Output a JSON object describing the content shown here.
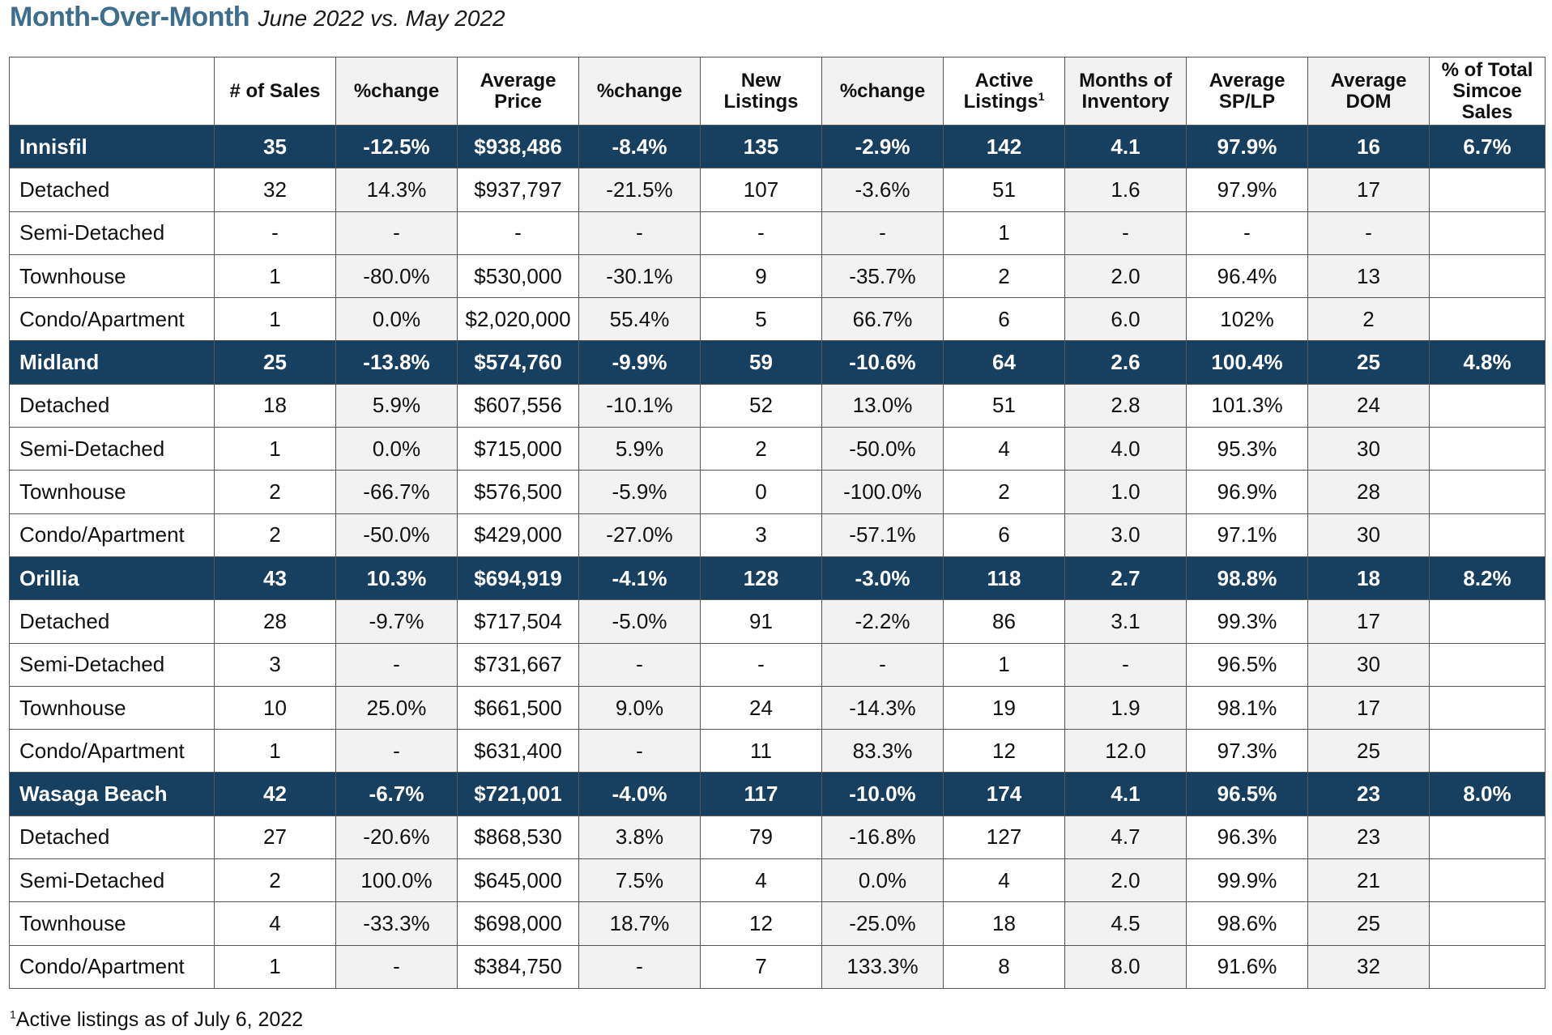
{
  "title": {
    "main": "Month-Over-Month",
    "sub": "June 2022 vs. May 2022"
  },
  "headers": [
    "",
    "# of Sales",
    "%change",
    "Average Price",
    "%change",
    "New Listings",
    "%change",
    "Active Listings",
    "Months of Inventory",
    "Average SP/LP",
    "Average DOM",
    "% of Total Simcoe Sales"
  ],
  "header_footnote_mark": "1",
  "regions": [
    {
      "summary": [
        "Innisfil",
        "35",
        "-12.5%",
        "$938,486",
        "-8.4%",
        "135",
        "-2.9%",
        "142",
        "4.1",
        "97.9%",
        "16",
        "6.7%"
      ],
      "rows": [
        [
          "Detached",
          "32",
          "14.3%",
          "$937,797",
          "-21.5%",
          "107",
          "-3.6%",
          "51",
          "1.6",
          "97.9%",
          "17",
          ""
        ],
        [
          "Semi-Detached",
          "-",
          "-",
          "-",
          "-",
          "-",
          "-",
          "1",
          "-",
          "-",
          "-",
          ""
        ],
        [
          "Townhouse",
          "1",
          "-80.0%",
          "$530,000",
          "-30.1%",
          "9",
          "-35.7%",
          "2",
          "2.0",
          "96.4%",
          "13",
          ""
        ],
        [
          "Condo/Apartment",
          "1",
          "0.0%",
          "$2,020,000",
          "55.4%",
          "5",
          "66.7%",
          "6",
          "6.0",
          "102%",
          "2",
          ""
        ]
      ]
    },
    {
      "summary": [
        "Midland",
        "25",
        "-13.8%",
        "$574,760",
        "-9.9%",
        "59",
        "-10.6%",
        "64",
        "2.6",
        "100.4%",
        "25",
        "4.8%"
      ],
      "rows": [
        [
          "Detached",
          "18",
          "5.9%",
          "$607,556",
          "-10.1%",
          "52",
          "13.0%",
          "51",
          "2.8",
          "101.3%",
          "24",
          ""
        ],
        [
          "Semi-Detached",
          "1",
          "0.0%",
          "$715,000",
          "5.9%",
          "2",
          "-50.0%",
          "4",
          "4.0",
          "95.3%",
          "30",
          ""
        ],
        [
          "Townhouse",
          "2",
          "-66.7%",
          "$576,500",
          "-5.9%",
          "0",
          "-100.0%",
          "2",
          "1.0",
          "96.9%",
          "28",
          ""
        ],
        [
          "Condo/Apartment",
          "2",
          "-50.0%",
          "$429,000",
          "-27.0%",
          "3",
          "-57.1%",
          "6",
          "3.0",
          "97.1%",
          "30",
          ""
        ]
      ]
    },
    {
      "summary": [
        "Orillia",
        "43",
        "10.3%",
        "$694,919",
        "-4.1%",
        "128",
        "-3.0%",
        "118",
        "2.7",
        "98.8%",
        "18",
        "8.2%"
      ],
      "rows": [
        [
          "Detached",
          "28",
          "-9.7%",
          "$717,504",
          "-5.0%",
          "91",
          "-2.2%",
          "86",
          "3.1",
          "99.3%",
          "17",
          ""
        ],
        [
          "Semi-Detached",
          "3",
          "-",
          "$731,667",
          "-",
          "-",
          "-",
          "1",
          "-",
          "96.5%",
          "30",
          ""
        ],
        [
          "Townhouse",
          "10",
          "25.0%",
          "$661,500",
          "9.0%",
          "24",
          "-14.3%",
          "19",
          "1.9",
          "98.1%",
          "17",
          ""
        ],
        [
          "Condo/Apartment",
          "1",
          "-",
          "$631,400",
          "-",
          "11",
          "83.3%",
          "12",
          "12.0",
          "97.3%",
          "25",
          ""
        ]
      ]
    },
    {
      "summary": [
        "Wasaga Beach",
        "42",
        "-6.7%",
        "$721,001",
        "-4.0%",
        "117",
        "-10.0%",
        "174",
        "4.1",
        "96.5%",
        "23",
        "8.0%"
      ],
      "rows": [
        [
          "Detached",
          "27",
          "-20.6%",
          "$868,530",
          "3.8%",
          "79",
          "-16.8%",
          "127",
          "4.7",
          "96.3%",
          "23",
          ""
        ],
        [
          "Semi-Detached",
          "2",
          "100.0%",
          "$645,000",
          "7.5%",
          "4",
          "0.0%",
          "4",
          "2.0",
          "99.9%",
          "21",
          ""
        ],
        [
          "Townhouse",
          "4",
          "-33.3%",
          "$698,000",
          "18.7%",
          "12",
          "-25.0%",
          "18",
          "4.5",
          "98.6%",
          "25",
          ""
        ],
        [
          "Condo/Apartment",
          "1",
          "-",
          "$384,750",
          "-",
          "7",
          "133.3%",
          "8",
          "8.0",
          "91.6%",
          "32",
          ""
        ]
      ]
    }
  ],
  "footnote": {
    "mark": "1",
    "text": "Active listings as of July 6, 2022"
  },
  "colors": {
    "title": "#3d6e8c",
    "region_row_bg": "#173f5f",
    "region_row_text": "#ffffff",
    "alt_column_bg": "#f2f2f2"
  }
}
